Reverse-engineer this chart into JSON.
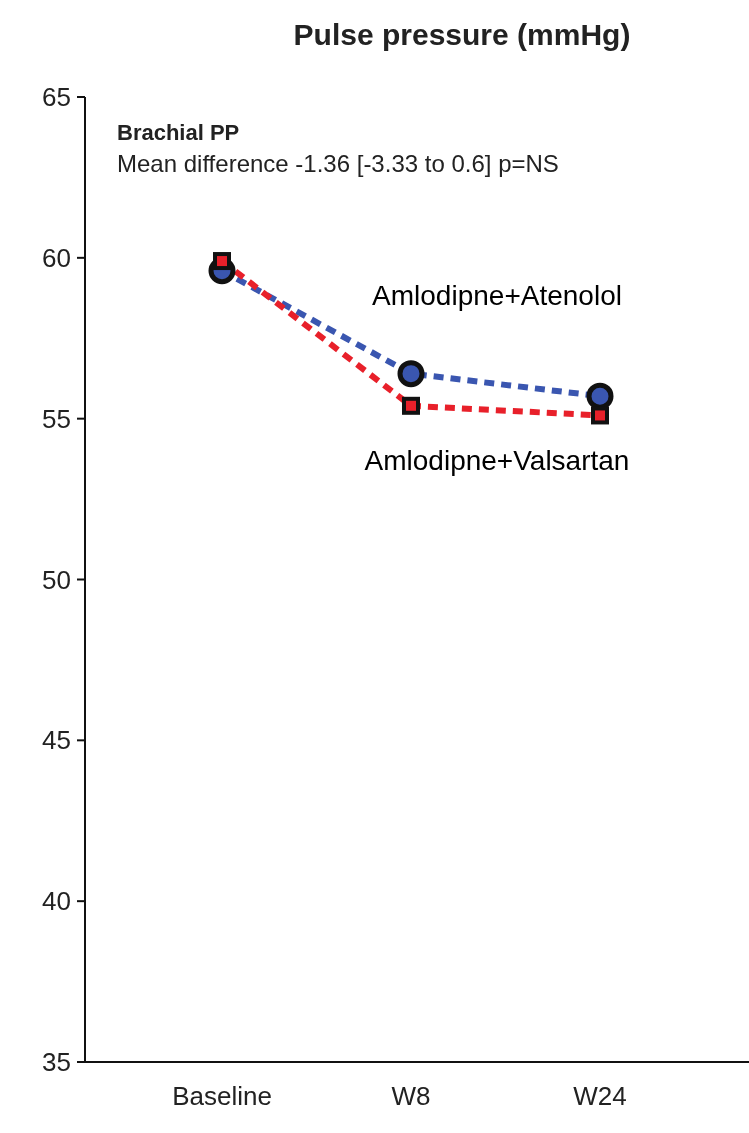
{
  "chart_data": {
    "type": "line",
    "title": "Pulse pressure (mmHg)",
    "categories": [
      "Baseline",
      "W8",
      "W24"
    ],
    "series": [
      {
        "name": "Amlodipne+Atenolol",
        "color": "#3a56b0",
        "values": [
          59.6,
          56.4,
          55.7
        ],
        "marker": "circle"
      },
      {
        "name": "Amlodipne+Valsartan",
        "color": "#e8202a",
        "values": [
          59.9,
          55.4,
          55.1
        ],
        "marker": "square"
      }
    ],
    "ylim": [
      35,
      65
    ],
    "yticks": [
      35,
      40,
      45,
      50,
      55,
      60,
      65
    ],
    "grid": false,
    "legend": false,
    "line_style": "dashed",
    "annotations": [
      "Brachial PP",
      "Mean difference -1.36 [-3.33 to 0.6] p=NS"
    ]
  }
}
